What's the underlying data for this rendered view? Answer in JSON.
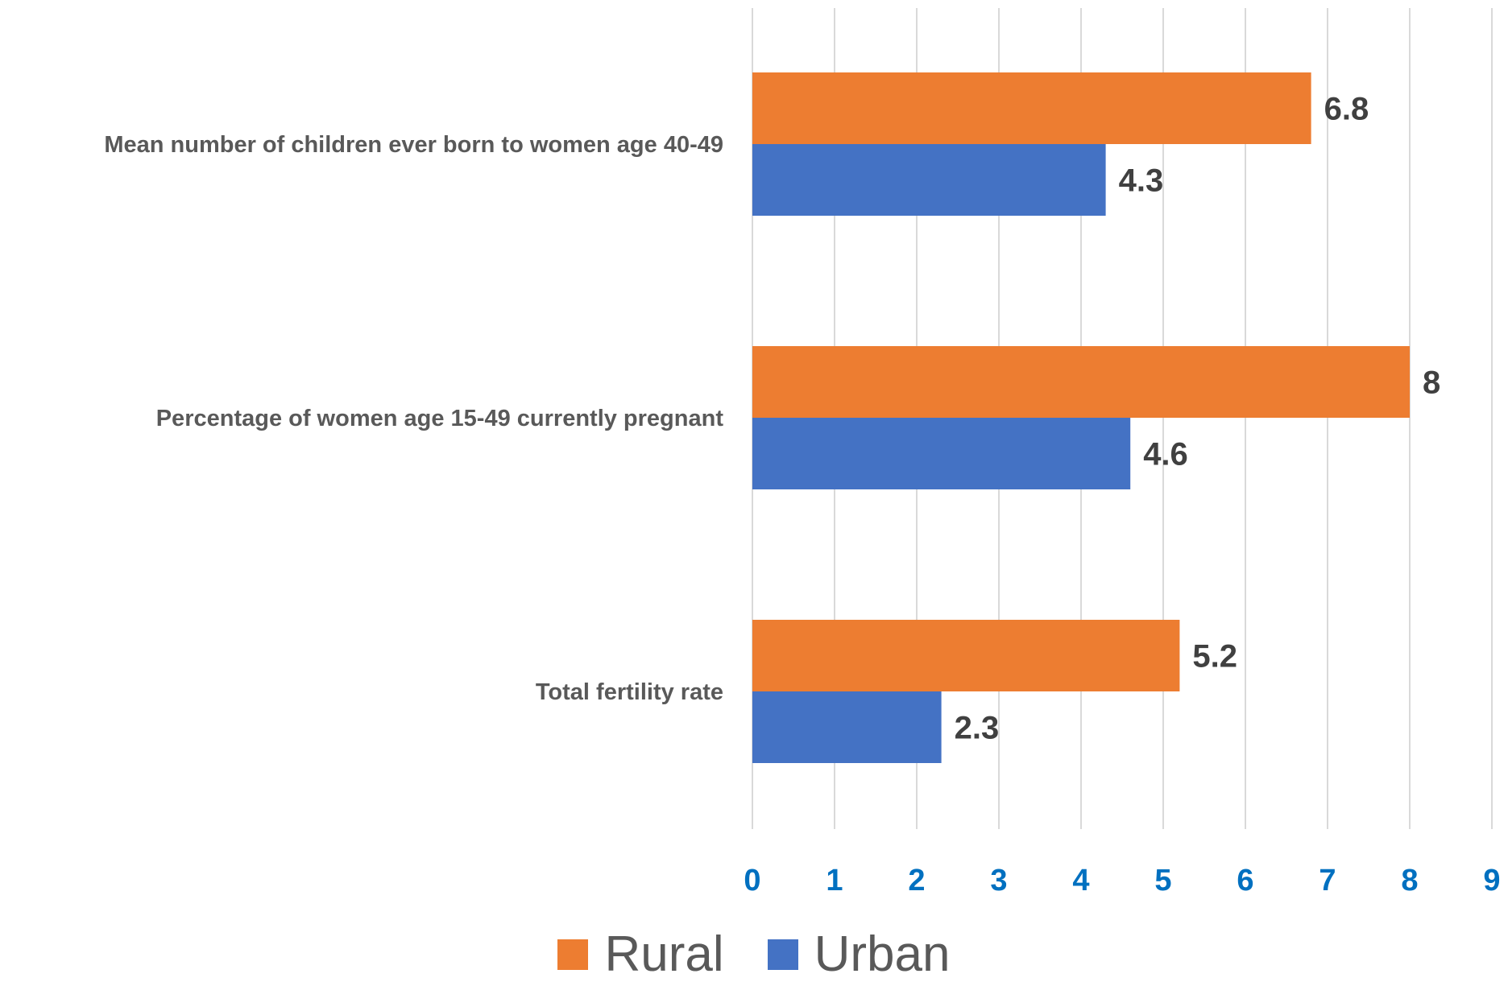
{
  "chart_data": {
    "type": "bar",
    "orientation": "horizontal",
    "categories": [
      "Mean number of children ever born to women age 40-49",
      "Percentage of women age 15-49 currently pregnant",
      "Total fertility rate"
    ],
    "series": [
      {
        "name": "Rural",
        "values": [
          6.8,
          8,
          5.2
        ],
        "color": "#ED7D31"
      },
      {
        "name": "Urban",
        "values": [
          4.3,
          4.6,
          2.3
        ],
        "color": "#4472C4"
      }
    ],
    "xlim": [
      0,
      9
    ],
    "x_ticks": [
      "0",
      "1",
      "2",
      "3",
      "4",
      "5",
      "6",
      "7",
      "8",
      "9"
    ],
    "tick_color": "#0070C0",
    "gridlines": true,
    "legend_position": "bottom",
    "title": "",
    "xlabel": "",
    "ylabel": ""
  }
}
